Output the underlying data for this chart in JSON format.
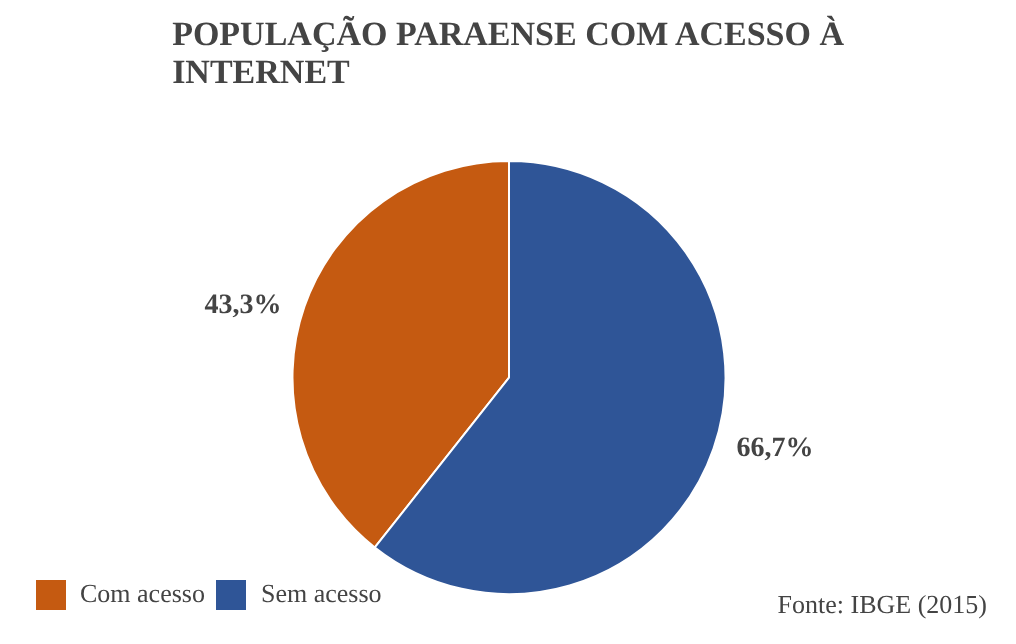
{
  "chart_data": {
    "type": "pie",
    "title": "POPULAÇÃO PARAENSE COM ACESSO À INTERNET",
    "categories": [
      "Com acesso",
      "Sem acesso"
    ],
    "values": [
      43.3,
      66.7
    ],
    "colors": [
      "#c55a11",
      "#2f5597"
    ],
    "value_labels": [
      "43,3%",
      "66,7%"
    ],
    "legend": "bottom left",
    "annotations": [
      "Fonte: IBGE (2015)"
    ]
  }
}
